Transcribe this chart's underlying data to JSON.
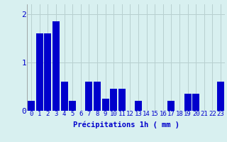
{
  "hours": [
    0,
    1,
    2,
    3,
    4,
    5,
    6,
    7,
    8,
    9,
    10,
    11,
    12,
    13,
    14,
    15,
    16,
    17,
    18,
    19,
    20,
    21,
    22,
    23
  ],
  "values": [
    0.2,
    1.6,
    1.6,
    1.85,
    0.6,
    0.2,
    0.0,
    0.6,
    0.6,
    0.25,
    0.45,
    0.45,
    0.0,
    0.2,
    0.0,
    0.0,
    0.0,
    0.2,
    0.0,
    0.35,
    0.35,
    0.0,
    0.0,
    0.6
  ],
  "bar_color": "#0000cc",
  "background_color": "#d8f0f0",
  "grid_color": "#b8d0d0",
  "text_color": "#0000cc",
  "xlabel": "Précipitations 1h ( mm )",
  "ylim": [
    0,
    2.2
  ],
  "yticks": [
    0,
    1,
    2
  ],
  "xlabel_fontsize": 7.5,
  "tick_fontsize": 6.5,
  "ytick_fontsize": 8.0
}
